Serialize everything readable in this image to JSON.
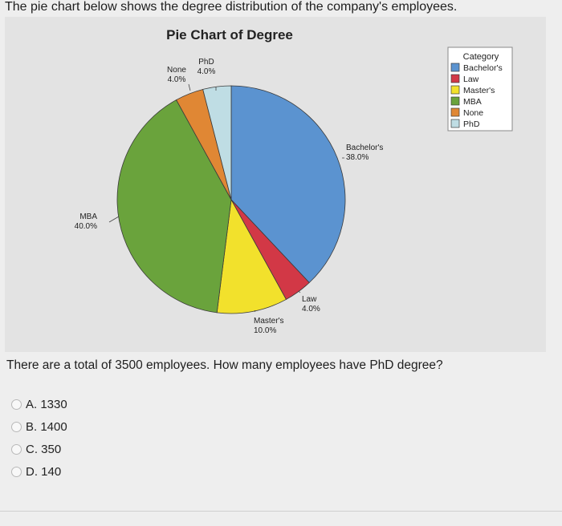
{
  "intro_text": "The pie chart below shows the degree distribution of the company's employees.",
  "question_text": "There are a total of 3500 employees. How many employees have PhD degree?",
  "options": [
    {
      "label": "A. 1330"
    },
    {
      "label": "B. 1400"
    },
    {
      "label": "C. 350"
    },
    {
      "label": "D. 140"
    }
  ],
  "chart_data": {
    "type": "pie",
    "title": "Pie Chart of Degree",
    "legend_title": "Category",
    "legend_position": "top-right",
    "slices": [
      {
        "name": "Bachelor's",
        "value": 38.0,
        "label": "38.0%",
        "color": "#5b93d0"
      },
      {
        "name": "Law",
        "value": 4.0,
        "label": "4.0%",
        "color": "#d23846"
      },
      {
        "name": "Master's",
        "value": 10.0,
        "label": "10.0%",
        "color": "#f2e12c"
      },
      {
        "name": "MBA",
        "value": 40.0,
        "label": "40.0%",
        "color": "#6aa33c"
      },
      {
        "name": "None",
        "value": 4.0,
        "label": "4.0%",
        "color": "#e08734"
      },
      {
        "name": "PhD",
        "value": 4.0,
        "label": "4.0%",
        "color": "#bfdde4"
      }
    ]
  }
}
